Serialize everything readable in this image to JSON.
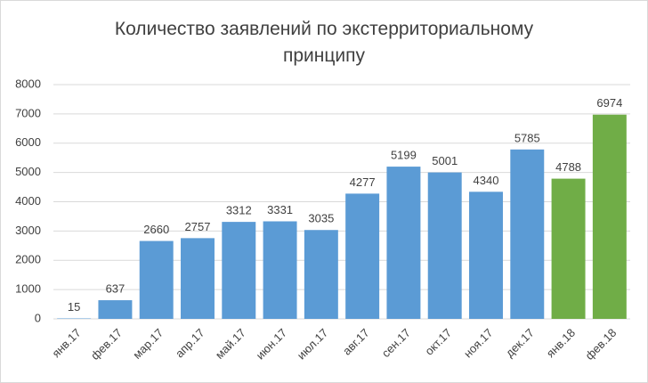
{
  "chart_data": {
    "type": "bar",
    "title": "Количество заявлений по экстерриториальному принципу",
    "categories": [
      "янв.17",
      "фев.17",
      "мар.17",
      "апр.17",
      "май.17",
      "июн.17",
      "июл.17",
      "авг.17",
      "сен.17",
      "окт.17",
      "ноя.17",
      "дек.17",
      "янв.18",
      "фев.18"
    ],
    "values": [
      15,
      637,
      2660,
      2757,
      3312,
      3331,
      3035,
      4277,
      5199,
      5001,
      4340,
      5785,
      4788,
      6974
    ],
    "colors": [
      "#5b9bd5",
      "#5b9bd5",
      "#5b9bd5",
      "#5b9bd5",
      "#5b9bd5",
      "#5b9bd5",
      "#5b9bd5",
      "#5b9bd5",
      "#5b9bd5",
      "#5b9bd5",
      "#5b9bd5",
      "#5b9bd5",
      "#70ad47",
      "#70ad47"
    ],
    "ylim": [
      0,
      8000
    ],
    "yticks": [
      0,
      1000,
      2000,
      3000,
      4000,
      5000,
      6000,
      7000,
      8000
    ],
    "grid": true
  }
}
